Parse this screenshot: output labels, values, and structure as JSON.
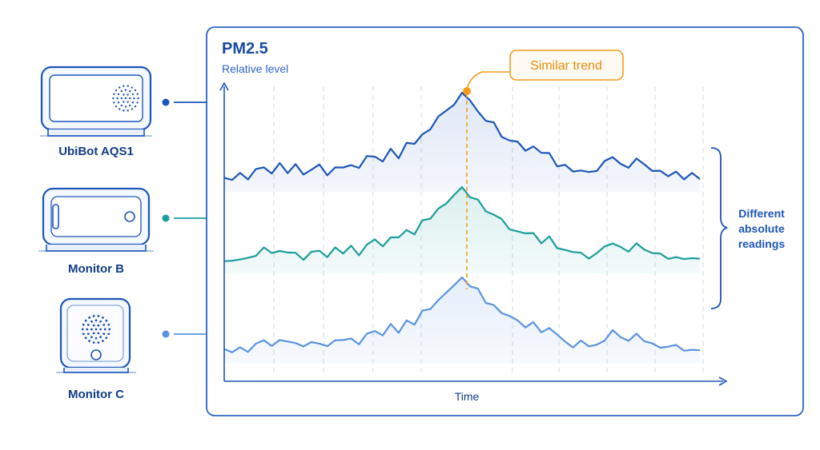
{
  "devices": [
    {
      "name": "UbiBot AQS1",
      "color": "#1d55b8",
      "icon": "air-quality-sensor-icon"
    },
    {
      "name": "Monitor B",
      "color": "#1a9e9a",
      "icon": "tablet-monitor-icon"
    },
    {
      "name": "Monitor C",
      "color": "#5b93e0",
      "icon": "cube-monitor-icon"
    }
  ],
  "chart": {
    "title": "PM2.5",
    "ylabel": "Relative level",
    "xlabel": "Time",
    "callout": "Similar trend",
    "bracket_label_lines": [
      "Different",
      "absolute",
      "readings"
    ],
    "frame_color": "#2f63c9",
    "callout_color": "#f59b1c",
    "bracket_color": "#1d55b8"
  },
  "chart_data": {
    "type": "line",
    "description_free": true,
    "x": [
      0,
      1,
      2,
      3,
      4,
      5,
      6,
      7,
      8,
      9,
      10,
      11,
      12,
      13,
      14,
      15,
      16,
      17,
      18,
      19,
      20,
      21,
      22,
      23,
      24,
      25,
      26,
      27,
      28,
      29,
      30,
      31,
      32,
      33,
      34,
      35,
      36,
      37,
      38,
      39,
      40,
      41,
      42,
      43,
      44,
      45,
      46,
      47,
      48,
      49,
      50,
      51,
      52,
      53,
      54,
      55,
      56,
      57,
      58,
      59,
      60
    ],
    "shape": [
      0.05,
      0.04,
      0.09,
      0.06,
      0.12,
      0.18,
      0.14,
      0.2,
      0.13,
      0.16,
      0.1,
      0.14,
      0.17,
      0.12,
      0.18,
      0.15,
      0.22,
      0.16,
      0.25,
      0.3,
      0.26,
      0.36,
      0.31,
      0.44,
      0.4,
      0.55,
      0.62,
      0.72,
      0.8,
      0.88,
      1.0,
      0.9,
      0.82,
      0.7,
      0.64,
      0.55,
      0.48,
      0.44,
      0.38,
      0.4,
      0.3,
      0.34,
      0.22,
      0.18,
      0.12,
      0.16,
      0.1,
      0.14,
      0.21,
      0.28,
      0.22,
      0.19,
      0.25,
      0.2,
      0.14,
      0.1,
      0.08,
      0.12,
      0.06,
      0.09,
      0.05
    ],
    "series": [
      {
        "offset": 0.0
      },
      {
        "offset": 0.0
      },
      {
        "offset": 0.0
      }
    ]
  }
}
